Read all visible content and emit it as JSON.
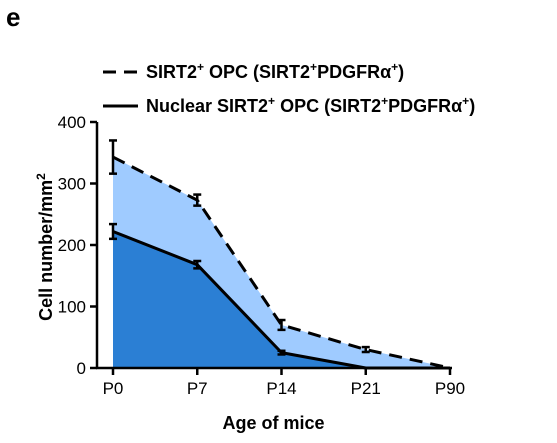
{
  "panel_label": "e",
  "chart_data": {
    "type": "area",
    "title": "",
    "xlabel": "Age of mice",
    "ylabel": "Cell number/mm",
    "ylabel_superscript": "2",
    "categories": [
      "P0",
      "P7",
      "P14",
      "P21",
      "P90"
    ],
    "ylim": [
      0,
      400
    ],
    "yticks": [
      0,
      100,
      200,
      300,
      400
    ],
    "grid": false,
    "legend_position": "top",
    "series": [
      {
        "name": "SIRT2+ OPC (SIRT2+PDGFRα+)",
        "name_parts": [
          {
            "text": "SIRT2",
            "sup": false
          },
          {
            "text": "+",
            "sup": true
          },
          {
            "text": " OPC (SIRT2",
            "sup": false
          },
          {
            "text": "+",
            "sup": true
          },
          {
            "text": "PDGFRα",
            "sup": false
          },
          {
            "text": "+",
            "sup": true
          },
          {
            "text": ")",
            "sup": false
          }
        ],
        "line_style": "dashed",
        "fill_color": "#9fcbff",
        "values": [
          343,
          273,
          70,
          30,
          0
        ],
        "errors": [
          27,
          9,
          8,
          4,
          0
        ]
      },
      {
        "name": "Nuclear SIRT2+ OPC (SIRT2+PDGFRα+)",
        "name_parts": [
          {
            "text": "Nuclear SIRT2",
            "sup": false
          },
          {
            "text": "+",
            "sup": true
          },
          {
            "text": " OPC (SIRT2",
            "sup": false
          },
          {
            "text": "+",
            "sup": true
          },
          {
            "text": "PDGFRα",
            "sup": false
          },
          {
            "text": "+",
            "sup": true
          },
          {
            "text": ")",
            "sup": false
          }
        ],
        "line_style": "solid",
        "fill_color": "#2b7fd4",
        "values": [
          222,
          168,
          25,
          0,
          0
        ],
        "errors": [
          12,
          6,
          3,
          0,
          0
        ]
      }
    ]
  }
}
